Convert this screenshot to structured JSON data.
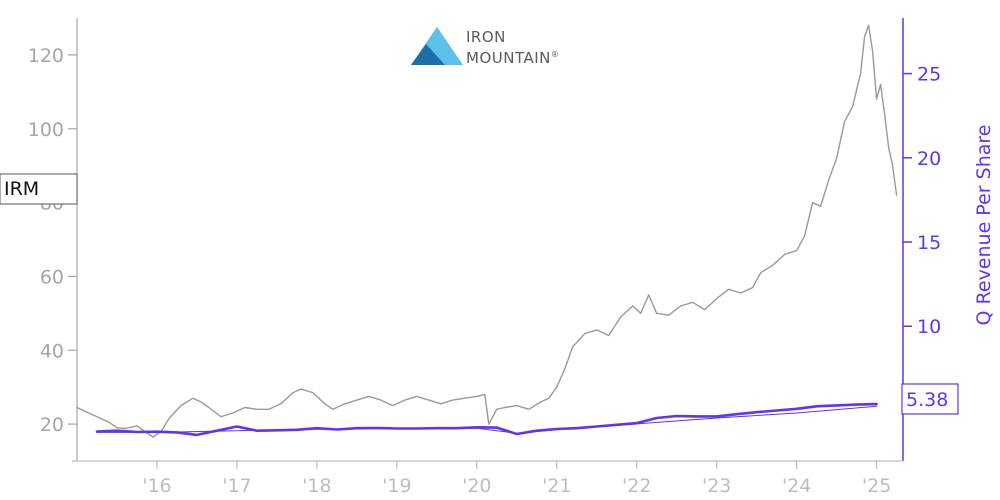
{
  "chart_data": {
    "type": "line",
    "logo_text": [
      "IRON",
      "MOUNTAIN"
    ],
    "logo_mark": "®",
    "ticker_label": "IRM",
    "latest_value_label": "5.38",
    "y_right_label": "Q Revenue Per Share",
    "colors": {
      "price": "#999999",
      "revenue": "#5e35f2",
      "left_axis": "#a6a6a6",
      "x_axis": "#bdbdbd",
      "logo_light": "#5bc0ea",
      "logo_dark": "#1e6fa8"
    },
    "x_range": [
      2015.0,
      2025.33
    ],
    "x_ticks": [
      {
        "x": 2016,
        "label": "'16"
      },
      {
        "x": 2017,
        "label": "'17"
      },
      {
        "x": 2018,
        "label": "'18"
      },
      {
        "x": 2019,
        "label": "'19"
      },
      {
        "x": 2020,
        "label": "'20"
      },
      {
        "x": 2021,
        "label": "'21"
      },
      {
        "x": 2022,
        "label": "'22"
      },
      {
        "x": 2023,
        "label": "'23"
      },
      {
        "x": 2024,
        "label": "'24"
      },
      {
        "x": 2025,
        "label": "'25"
      }
    ],
    "y_left_range": [
      10,
      130
    ],
    "y_left_ticks": [
      {
        "v": 20,
        "label": "20"
      },
      {
        "v": 40,
        "label": "40"
      },
      {
        "v": 60,
        "label": "60"
      },
      {
        "v": 80,
        "label": "80"
      },
      {
        "v": 100,
        "label": "100"
      },
      {
        "v": 120,
        "label": "120"
      }
    ],
    "y_right_range": [
      2.0,
      28.3
    ],
    "y_right_ticks": [
      {
        "v": 10,
        "label": "10"
      },
      {
        "v": 15,
        "label": "15"
      },
      {
        "v": 20,
        "label": "20"
      },
      {
        "v": 25,
        "label": "25"
      }
    ],
    "series": [
      {
        "axis": "left",
        "x": [
          2015.0,
          2015.1,
          2015.25,
          2015.4,
          2015.5,
          2015.6,
          2015.75,
          2015.85,
          2015.95,
          2016.05,
          2016.15,
          2016.3,
          2016.45,
          2016.55,
          2016.65,
          2016.8,
          2016.95,
          2017.1,
          2017.25,
          2017.4,
          2017.55,
          2017.7,
          2017.8,
          2017.95,
          2018.1,
          2018.2,
          2018.35,
          2018.5,
          2018.65,
          2018.8,
          2018.95,
          2019.1,
          2019.25,
          2019.4,
          2019.55,
          2019.7,
          2019.85,
          2020.0,
          2020.1,
          2020.15,
          2020.2,
          2020.25,
          2020.35,
          2020.5,
          2020.65,
          2020.8,
          2020.9,
          2021.0,
          2021.1,
          2021.2,
          2021.35,
          2021.5,
          2021.65,
          2021.8,
          2021.95,
          2022.05,
          2022.15,
          2022.25,
          2022.4,
          2022.55,
          2022.7,
          2022.85,
          2023.0,
          2023.15,
          2023.3,
          2023.45,
          2023.55,
          2023.7,
          2023.85,
          2024.0,
          2024.1,
          2024.2,
          2024.3,
          2024.4,
          2024.5,
          2024.6,
          2024.7,
          2024.8,
          2024.85,
          2024.9,
          2024.95,
          2025.0,
          2025.05,
          2025.1,
          2025.15,
          2025.2,
          2025.25
        ],
        "values": [
          24.5,
          23.5,
          22.0,
          20.5,
          19.0,
          18.8,
          19.5,
          18.0,
          16.5,
          18.0,
          21.5,
          25.0,
          27.0,
          26.0,
          24.5,
          22.0,
          23.0,
          24.5,
          24.0,
          24.0,
          25.5,
          28.5,
          29.5,
          28.5,
          25.5,
          24.0,
          25.5,
          26.5,
          27.5,
          26.5,
          25.0,
          26.5,
          27.5,
          26.5,
          25.5,
          26.5,
          27.0,
          27.5,
          28.0,
          20.0,
          22.0,
          24.0,
          24.5,
          25.0,
          24.0,
          26.0,
          27.0,
          30.0,
          35.0,
          41.0,
          44.5,
          45.5,
          44.0,
          49.0,
          52.0,
          50.0,
          55.0,
          50.0,
          49.5,
          52.0,
          53.0,
          51.0,
          54.0,
          56.5,
          55.5,
          57.0,
          61.0,
          63.0,
          66.0,
          67.0,
          71.0,
          80.0,
          79.0,
          86.0,
          92.0,
          102.0,
          106.0,
          115.0,
          125.0,
          128.0,
          121.0,
          108.0,
          112.0,
          104.0,
          95.0,
          90.0,
          82.0
        ]
      },
      {
        "axis": "right",
        "x": [
          2015.25,
          2015.5,
          2015.75,
          2016.0,
          2016.25,
          2016.5,
          2016.75,
          2017.0,
          2017.25,
          2017.5,
          2017.75,
          2018.0,
          2018.25,
          2018.5,
          2018.75,
          2019.0,
          2019.25,
          2019.5,
          2019.75,
          2020.0,
          2020.25,
          2020.5,
          2020.75,
          2021.0,
          2021.25,
          2021.5,
          2021.75,
          2022.0,
          2022.25,
          2022.5,
          2022.75,
          2023.0,
          2023.25,
          2023.5,
          2023.75,
          2024.0,
          2024.25,
          2024.5,
          2024.75,
          2025.0
        ],
        "values": [
          3.75,
          3.8,
          3.72,
          3.74,
          3.7,
          3.55,
          3.8,
          4.05,
          3.8,
          3.82,
          3.85,
          3.95,
          3.87,
          3.95,
          3.96,
          3.93,
          3.93,
          3.95,
          3.95,
          4.0,
          3.98,
          3.6,
          3.8,
          3.9,
          3.95,
          4.05,
          4.15,
          4.25,
          4.55,
          4.67,
          4.65,
          4.65,
          4.78,
          4.9,
          5.0,
          5.1,
          5.25,
          5.3,
          5.35,
          5.38
        ]
      },
      {
        "axis": "right",
        "x": [
          2015.25,
          2016.0,
          2017.0,
          2018.0,
          2019.0,
          2020.0,
          2020.5,
          2021.0,
          2022.0,
          2023.0,
          2024.0,
          2025.0
        ],
        "values": [
          3.7,
          3.7,
          3.8,
          3.88,
          3.93,
          3.95,
          3.65,
          3.85,
          4.2,
          4.55,
          4.85,
          5.25
        ]
      }
    ]
  }
}
